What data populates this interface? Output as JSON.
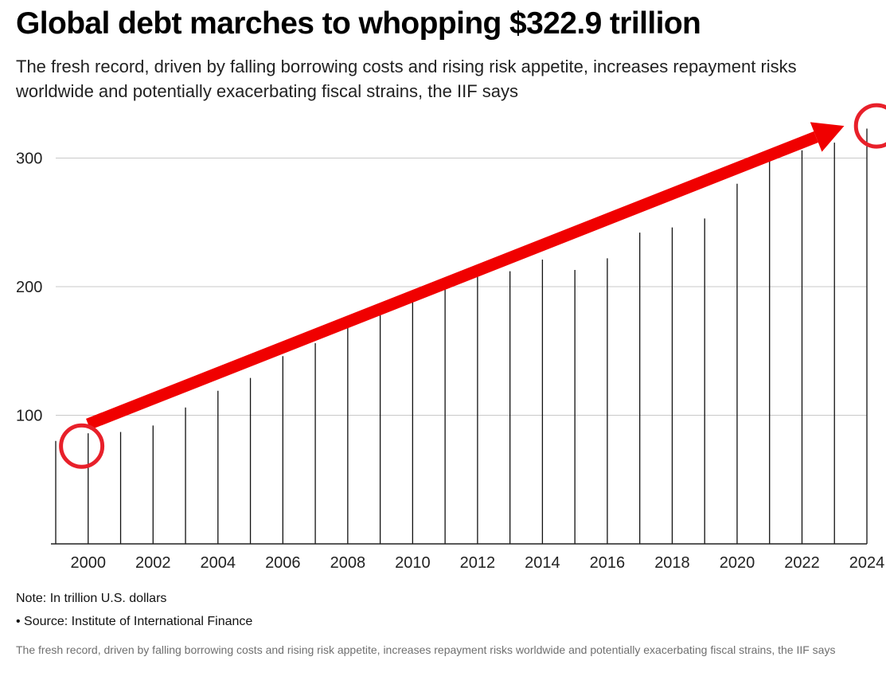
{
  "chart_data": {
    "type": "bar",
    "title": "Global debt marches to whopping $322.9 trillion",
    "subtitle": "The fresh record, driven by falling borrowing costs and rising risk appetite, increases repayment risks worldwide and potentially exacerbating fiscal strains, the IIF says",
    "x": [
      1999,
      2000,
      2001,
      2002,
      2003,
      2004,
      2005,
      2006,
      2007,
      2008,
      2009,
      2010,
      2011,
      2012,
      2013,
      2014,
      2015,
      2016,
      2017,
      2018,
      2019,
      2020,
      2021,
      2022,
      2023,
      2024
    ],
    "values": [
      80,
      86,
      87,
      92,
      106,
      119,
      129,
      146,
      156,
      172,
      187,
      193,
      205,
      211,
      212,
      221,
      213,
      222,
      242,
      246,
      253,
      280,
      298,
      306,
      312,
      322.9
    ],
    "x_tick_labels": [
      "2000",
      "2002",
      "2004",
      "2006",
      "2008",
      "2010",
      "2012",
      "2014",
      "2016",
      "2018",
      "2020",
      "2022",
      "2024"
    ],
    "y_tick_labels": [
      "100",
      "200",
      "300"
    ],
    "ylim": [
      0,
      330
    ],
    "grid": true,
    "annotations": {
      "arrow": {
        "from": {
          "x": 2000,
          "y": 93
        },
        "to": {
          "x": 2023.3,
          "y": 325
        },
        "color": "#f00000"
      },
      "circles": [
        {
          "x": 1999.8,
          "y": 76
        },
        {
          "x": 2024.3,
          "y": 325
        }
      ],
      "annotation_color": "#e8202a"
    },
    "note": "Note: In trillion U.S. dollars",
    "source": "• Source: Institute of International Finance",
    "caption": "The fresh record, driven by falling borrowing costs and rising risk appetite, increases repayment risks worldwide and potentially exacerbating fiscal strains, the IIF says"
  }
}
